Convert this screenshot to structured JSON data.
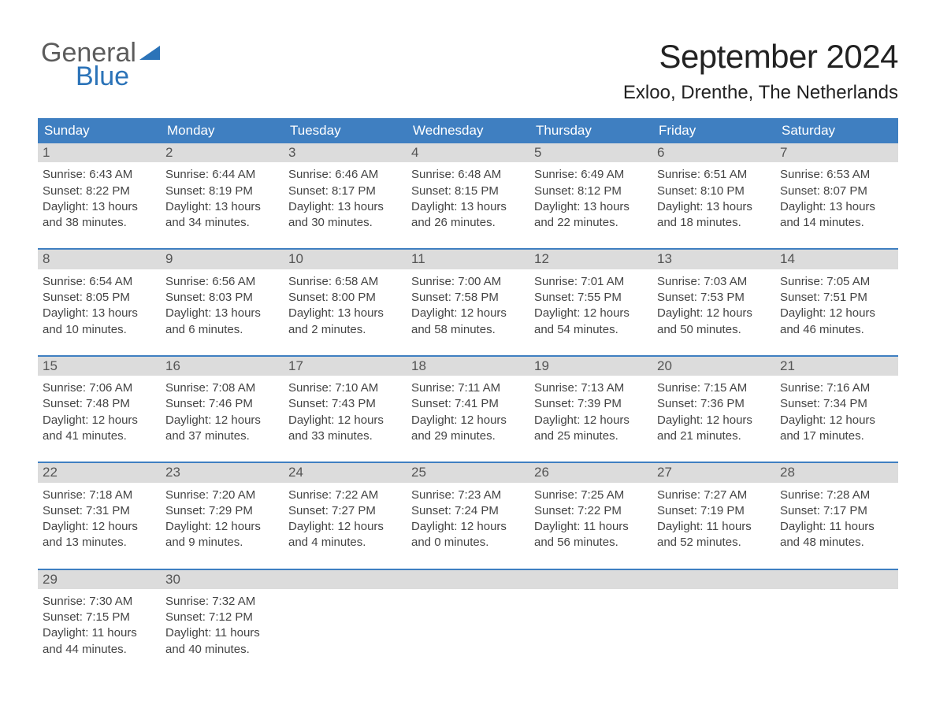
{
  "brand": {
    "line1": "General",
    "line2": "Blue"
  },
  "title": "September 2024",
  "location": "Exloo, Drenthe, The Netherlands",
  "colors": {
    "header_blue": "#3f7fc1",
    "daynum_grey": "#dcdcdc",
    "text_dark": "#333333",
    "page_bg": "#ffffff",
    "brand_grey": "#5c5c5c",
    "brand_blue": "#2b73b8"
  },
  "calendar": {
    "headers": [
      "Sunday",
      "Monday",
      "Tuesday",
      "Wednesday",
      "Thursday",
      "Friday",
      "Saturday"
    ],
    "weeks": [
      [
        {
          "num": "1",
          "sunrise": "Sunrise: 6:43 AM",
          "sunset": "Sunset: 8:22 PM",
          "day1": "Daylight: 13 hours",
          "day2": "and 38 minutes."
        },
        {
          "num": "2",
          "sunrise": "Sunrise: 6:44 AM",
          "sunset": "Sunset: 8:19 PM",
          "day1": "Daylight: 13 hours",
          "day2": "and 34 minutes."
        },
        {
          "num": "3",
          "sunrise": "Sunrise: 6:46 AM",
          "sunset": "Sunset: 8:17 PM",
          "day1": "Daylight: 13 hours",
          "day2": "and 30 minutes."
        },
        {
          "num": "4",
          "sunrise": "Sunrise: 6:48 AM",
          "sunset": "Sunset: 8:15 PM",
          "day1": "Daylight: 13 hours",
          "day2": "and 26 minutes."
        },
        {
          "num": "5",
          "sunrise": "Sunrise: 6:49 AM",
          "sunset": "Sunset: 8:12 PM",
          "day1": "Daylight: 13 hours",
          "day2": "and 22 minutes."
        },
        {
          "num": "6",
          "sunrise": "Sunrise: 6:51 AM",
          "sunset": "Sunset: 8:10 PM",
          "day1": "Daylight: 13 hours",
          "day2": "and 18 minutes."
        },
        {
          "num": "7",
          "sunrise": "Sunrise: 6:53 AM",
          "sunset": "Sunset: 8:07 PM",
          "day1": "Daylight: 13 hours",
          "day2": "and 14 minutes."
        }
      ],
      [
        {
          "num": "8",
          "sunrise": "Sunrise: 6:54 AM",
          "sunset": "Sunset: 8:05 PM",
          "day1": "Daylight: 13 hours",
          "day2": "and 10 minutes."
        },
        {
          "num": "9",
          "sunrise": "Sunrise: 6:56 AM",
          "sunset": "Sunset: 8:03 PM",
          "day1": "Daylight: 13 hours",
          "day2": "and 6 minutes."
        },
        {
          "num": "10",
          "sunrise": "Sunrise: 6:58 AM",
          "sunset": "Sunset: 8:00 PM",
          "day1": "Daylight: 13 hours",
          "day2": "and 2 minutes."
        },
        {
          "num": "11",
          "sunrise": "Sunrise: 7:00 AM",
          "sunset": "Sunset: 7:58 PM",
          "day1": "Daylight: 12 hours",
          "day2": "and 58 minutes."
        },
        {
          "num": "12",
          "sunrise": "Sunrise: 7:01 AM",
          "sunset": "Sunset: 7:55 PM",
          "day1": "Daylight: 12 hours",
          "day2": "and 54 minutes."
        },
        {
          "num": "13",
          "sunrise": "Sunrise: 7:03 AM",
          "sunset": "Sunset: 7:53 PM",
          "day1": "Daylight: 12 hours",
          "day2": "and 50 minutes."
        },
        {
          "num": "14",
          "sunrise": "Sunrise: 7:05 AM",
          "sunset": "Sunset: 7:51 PM",
          "day1": "Daylight: 12 hours",
          "day2": "and 46 minutes."
        }
      ],
      [
        {
          "num": "15",
          "sunrise": "Sunrise: 7:06 AM",
          "sunset": "Sunset: 7:48 PM",
          "day1": "Daylight: 12 hours",
          "day2": "and 41 minutes."
        },
        {
          "num": "16",
          "sunrise": "Sunrise: 7:08 AM",
          "sunset": "Sunset: 7:46 PM",
          "day1": "Daylight: 12 hours",
          "day2": "and 37 minutes."
        },
        {
          "num": "17",
          "sunrise": "Sunrise: 7:10 AM",
          "sunset": "Sunset: 7:43 PM",
          "day1": "Daylight: 12 hours",
          "day2": "and 33 minutes."
        },
        {
          "num": "18",
          "sunrise": "Sunrise: 7:11 AM",
          "sunset": "Sunset: 7:41 PM",
          "day1": "Daylight: 12 hours",
          "day2": "and 29 minutes."
        },
        {
          "num": "19",
          "sunrise": "Sunrise: 7:13 AM",
          "sunset": "Sunset: 7:39 PM",
          "day1": "Daylight: 12 hours",
          "day2": "and 25 minutes."
        },
        {
          "num": "20",
          "sunrise": "Sunrise: 7:15 AM",
          "sunset": "Sunset: 7:36 PM",
          "day1": "Daylight: 12 hours",
          "day2": "and 21 minutes."
        },
        {
          "num": "21",
          "sunrise": "Sunrise: 7:16 AM",
          "sunset": "Sunset: 7:34 PM",
          "day1": "Daylight: 12 hours",
          "day2": "and 17 minutes."
        }
      ],
      [
        {
          "num": "22",
          "sunrise": "Sunrise: 7:18 AM",
          "sunset": "Sunset: 7:31 PM",
          "day1": "Daylight: 12 hours",
          "day2": "and 13 minutes."
        },
        {
          "num": "23",
          "sunrise": "Sunrise: 7:20 AM",
          "sunset": "Sunset: 7:29 PM",
          "day1": "Daylight: 12 hours",
          "day2": "and 9 minutes."
        },
        {
          "num": "24",
          "sunrise": "Sunrise: 7:22 AM",
          "sunset": "Sunset: 7:27 PM",
          "day1": "Daylight: 12 hours",
          "day2": "and 4 minutes."
        },
        {
          "num": "25",
          "sunrise": "Sunrise: 7:23 AM",
          "sunset": "Sunset: 7:24 PM",
          "day1": "Daylight: 12 hours",
          "day2": "and 0 minutes."
        },
        {
          "num": "26",
          "sunrise": "Sunrise: 7:25 AM",
          "sunset": "Sunset: 7:22 PM",
          "day1": "Daylight: 11 hours",
          "day2": "and 56 minutes."
        },
        {
          "num": "27",
          "sunrise": "Sunrise: 7:27 AM",
          "sunset": "Sunset: 7:19 PM",
          "day1": "Daylight: 11 hours",
          "day2": "and 52 minutes."
        },
        {
          "num": "28",
          "sunrise": "Sunrise: 7:28 AM",
          "sunset": "Sunset: 7:17 PM",
          "day1": "Daylight: 11 hours",
          "day2": "and 48 minutes."
        }
      ],
      [
        {
          "num": "29",
          "sunrise": "Sunrise: 7:30 AM",
          "sunset": "Sunset: 7:15 PM",
          "day1": "Daylight: 11 hours",
          "day2": "and 44 minutes."
        },
        {
          "num": "30",
          "sunrise": "Sunrise: 7:32 AM",
          "sunset": "Sunset: 7:12 PM",
          "day1": "Daylight: 11 hours",
          "day2": "and 40 minutes."
        },
        {
          "num": "",
          "sunrise": "",
          "sunset": "",
          "day1": "",
          "day2": ""
        },
        {
          "num": "",
          "sunrise": "",
          "sunset": "",
          "day1": "",
          "day2": ""
        },
        {
          "num": "",
          "sunrise": "",
          "sunset": "",
          "day1": "",
          "day2": ""
        },
        {
          "num": "",
          "sunrise": "",
          "sunset": "",
          "day1": "",
          "day2": ""
        },
        {
          "num": "",
          "sunrise": "",
          "sunset": "",
          "day1": "",
          "day2": ""
        }
      ]
    ]
  }
}
